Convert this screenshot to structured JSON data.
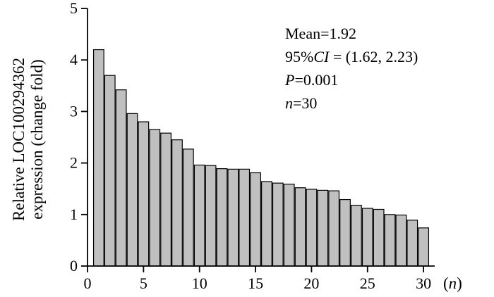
{
  "chart_data": {
    "type": "bar",
    "title": "",
    "ylabel_line1": "Relative LOC100294362",
    "ylabel_line2": "expression (change fold)",
    "xlabel": "(n)",
    "ylim": [
      0,
      5
    ],
    "xlim": [
      0,
      31
    ],
    "yticks": [
      "0",
      "1",
      "2",
      "3",
      "4",
      "5"
    ],
    "xticks": [
      "0",
      "5",
      "10",
      "15",
      "20",
      "25",
      "30"
    ],
    "categories": [
      1,
      2,
      3,
      4,
      5,
      6,
      7,
      8,
      9,
      10,
      11,
      12,
      13,
      14,
      15,
      16,
      17,
      18,
      19,
      20,
      21,
      22,
      23,
      24,
      25,
      26,
      27,
      28,
      29,
      30
    ],
    "values": [
      4.2,
      3.7,
      3.42,
      2.96,
      2.8,
      2.65,
      2.58,
      2.45,
      2.27,
      1.96,
      1.95,
      1.89,
      1.88,
      1.88,
      1.81,
      1.64,
      1.61,
      1.59,
      1.52,
      1.49,
      1.47,
      1.46,
      1.29,
      1.18,
      1.12,
      1.1,
      1.0,
      0.99,
      0.89,
      0.74
    ],
    "bar_color": "#c0c0c0",
    "annotations": {
      "mean": "Mean=1.92",
      "ci_prefix": "95%",
      "ci_symbol": "CI",
      "ci_value": " = (1.62, 2.23)",
      "p_symbol": "P",
      "p_value": "=0.001",
      "n_symbol": "n",
      "n_value": "=30"
    }
  }
}
